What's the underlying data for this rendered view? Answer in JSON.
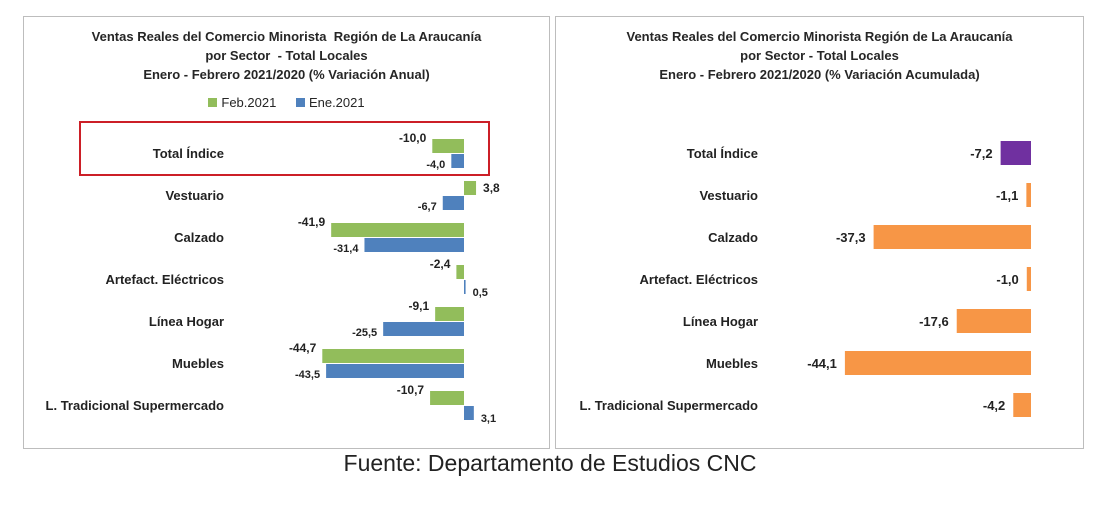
{
  "colors": {
    "feb": "#92bd5b",
    "ene": "#4f81bd",
    "total_acum": "#7030a0",
    "acum": "#f79646",
    "highlight": "#cc1f27"
  },
  "source": "Fuente: Departamento de Estudios CNC",
  "chart_data": [
    {
      "type": "bar",
      "orientation": "horizontal",
      "title": [
        "Ventas Reales del Comercio Minorista  Región de La Araucanía",
        "por Sector  - Total Locales",
        "Enero - Febrero 2021/2020 (% Variación Anual)"
      ],
      "categories": [
        "Total Índice",
        "Vestuario",
        "Calzado",
        "Artefact. Eléctricos",
        "Línea Hogar",
        "Muebles",
        "L. Tradicional Supermercado"
      ],
      "series": [
        {
          "name": "Feb.2021",
          "values": [
            -10.0,
            3.8,
            -41.9,
            -2.4,
            -9.1,
            -44.7,
            -10.7
          ],
          "labels": [
            "-10,0",
            "3,8",
            "-41,9",
            "-2,4",
            "-9,1",
            "-44,7",
            "-10,7"
          ]
        },
        {
          "name": "Ene.2021",
          "values": [
            -4.0,
            -6.7,
            -31.4,
            0.5,
            -25.5,
            -43.5,
            3.1
          ],
          "labels": [
            "-4,0",
            "-6,7",
            "-31,4",
            "0,5",
            "-25,5",
            "-43,5",
            "3,1"
          ]
        }
      ],
      "legend": "top",
      "grid": false,
      "highlighted_category": "Total Índice"
    },
    {
      "type": "bar",
      "orientation": "horizontal",
      "title": [
        "Ventas Reales del Comercio Minorista Región de La Araucanía",
        "por Sector - Total Locales",
        "Enero - Febrero 2021/2020 (% Variación Acumulada)"
      ],
      "categories": [
        "Total Índice",
        "Vestuario",
        "Calzado",
        "Artefact. Eléctricos",
        "Línea Hogar",
        "Muebles",
        "L. Tradicional Supermercado"
      ],
      "series": [
        {
          "values": [
            -7.2,
            -1.1,
            -37.3,
            -1.0,
            -17.6,
            -44.1,
            -4.2
          ],
          "labels": [
            "-7,2",
            "-1,1",
            "-37,3",
            "-1,0",
            "-17,6",
            "-44,1",
            "-4,2"
          ]
        }
      ],
      "legend": "none",
      "grid": false
    }
  ]
}
